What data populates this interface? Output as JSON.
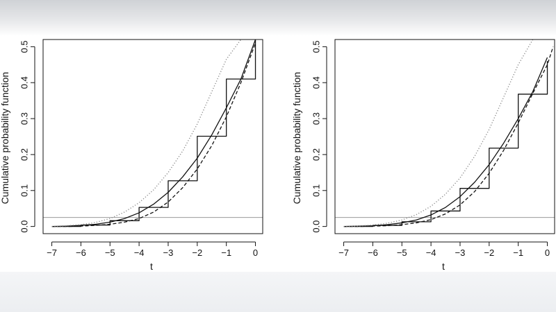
{
  "chart_data": [
    {
      "type": "line",
      "title": "",
      "xlabel": "t",
      "ylabel": "Cumulative probability function",
      "xlim": [
        -7.3,
        0.25
      ],
      "ylim": [
        -0.02,
        0.52
      ],
      "x_ticks": [
        -7,
        -6,
        -5,
        -4,
        -3,
        -2,
        -1,
        0
      ],
      "x_tick_labels": [
        "−7",
        "−6",
        "−5",
        "−4",
        "−3",
        "−2",
        "−1",
        "0"
      ],
      "y_ticks": [
        0,
        0.1,
        0.2,
        0.3,
        0.4,
        0.5
      ],
      "y_tick_labels": [
        "0.0",
        "0.1",
        "0.2",
        "0.3",
        "0.4",
        "0.5"
      ],
      "grid": false,
      "legend": "none",
      "reference_line": 0.025,
      "series": [
        {
          "style": "step",
          "x": [
            -7,
            -6,
            -5,
            -4,
            -3,
            -2,
            -1,
            0
          ],
          "y": [
            0.0,
            0.004,
            0.016,
            0.053,
            0.127,
            0.251,
            0.41,
            0.52
          ]
        },
        {
          "style": "solid",
          "x": [
            -7,
            -6.5,
            -6,
            -5.5,
            -5,
            -4.5,
            -4,
            -3.5,
            -3,
            -2.5,
            -2,
            -1.5,
            -1,
            -0.5,
            0
          ],
          "y": [
            0.0,
            0.001,
            0.003,
            0.006,
            0.012,
            0.022,
            0.038,
            0.062,
            0.095,
            0.138,
            0.19,
            0.255,
            0.33,
            0.41,
            0.52
          ]
        },
        {
          "style": "dashed",
          "x": [
            -7,
            -6.5,
            -6,
            -5.5,
            -5,
            -4.5,
            -4,
            -3.5,
            -3,
            -2.5,
            -2,
            -1.5,
            -1,
            -0.5,
            0
          ],
          "y": [
            0.0,
            0.0,
            0.001,
            0.003,
            0.006,
            0.012,
            0.022,
            0.04,
            0.068,
            0.108,
            0.16,
            0.225,
            0.305,
            0.4,
            0.51
          ]
        },
        {
          "style": "dotted",
          "color": "#8a8a8a",
          "x": [
            -7,
            -6.5,
            -6,
            -5.5,
            -5,
            -4.5,
            -4,
            -3.5,
            -3,
            -2.5,
            -2,
            -1.5,
            -1,
            -0.5
          ],
          "y": [
            0.0,
            0.002,
            0.005,
            0.011,
            0.022,
            0.04,
            0.066,
            0.102,
            0.15,
            0.21,
            0.285,
            0.375,
            0.465,
            0.52
          ]
        }
      ]
    },
    {
      "type": "line",
      "title": "",
      "xlabel": "t",
      "ylabel": "Cumulative probability function",
      "xlim": [
        -7.3,
        0.25
      ],
      "ylim": [
        -0.02,
        0.52
      ],
      "x_ticks": [
        -7,
        -6,
        -5,
        -4,
        -3,
        -2,
        -1,
        0
      ],
      "x_tick_labels": [
        "−7",
        "−6",
        "−5",
        "−4",
        "−3",
        "−2",
        "−1",
        "0"
      ],
      "y_ticks": [
        0,
        0.1,
        0.2,
        0.3,
        0.4,
        0.5
      ],
      "y_tick_labels": [
        "0.0",
        "0.1",
        "0.2",
        "0.3",
        "0.4",
        "0.5"
      ],
      "grid": false,
      "legend": "none",
      "reference_line": 0.025,
      "series": [
        {
          "style": "step",
          "x": [
            -7,
            -6,
            -5,
            -4,
            -3,
            -2,
            -1,
            0
          ],
          "y": [
            0.0,
            0.003,
            0.013,
            0.043,
            0.106,
            0.218,
            0.368,
            0.46
          ]
        },
        {
          "style": "solid",
          "x": [
            -7,
            -6.5,
            -6,
            -5.5,
            -5,
            -4.5,
            -4,
            -3.5,
            -3,
            -2.5,
            -2,
            -1.5,
            -1,
            -0.5,
            0
          ],
          "y": [
            0.0,
            0.001,
            0.002,
            0.005,
            0.01,
            0.018,
            0.032,
            0.053,
            0.083,
            0.123,
            0.172,
            0.232,
            0.3,
            0.375,
            0.47
          ]
        },
        {
          "style": "dashed",
          "x": [
            -7,
            -6.5,
            -6,
            -5.5,
            -5,
            -4.5,
            -4,
            -3.5,
            -3,
            -2.5,
            -2,
            -1.5,
            -1,
            -0.5,
            0,
            0.2
          ],
          "y": [
            0.0,
            0.0,
            0.001,
            0.002,
            0.005,
            0.01,
            0.019,
            0.035,
            0.06,
            0.097,
            0.148,
            0.212,
            0.288,
            0.37,
            0.45,
            0.5
          ]
        },
        {
          "style": "dotted",
          "color": "#8a8a8a",
          "x": [
            -7,
            -6.5,
            -6,
            -5.5,
            -5,
            -4.5,
            -4,
            -3.5,
            -3,
            -2.5,
            -2,
            -1.5,
            -1,
            -0.5
          ],
          "y": [
            0.0,
            0.001,
            0.004,
            0.009,
            0.018,
            0.033,
            0.056,
            0.09,
            0.135,
            0.195,
            0.27,
            0.36,
            0.45,
            0.52
          ]
        }
      ]
    }
  ]
}
